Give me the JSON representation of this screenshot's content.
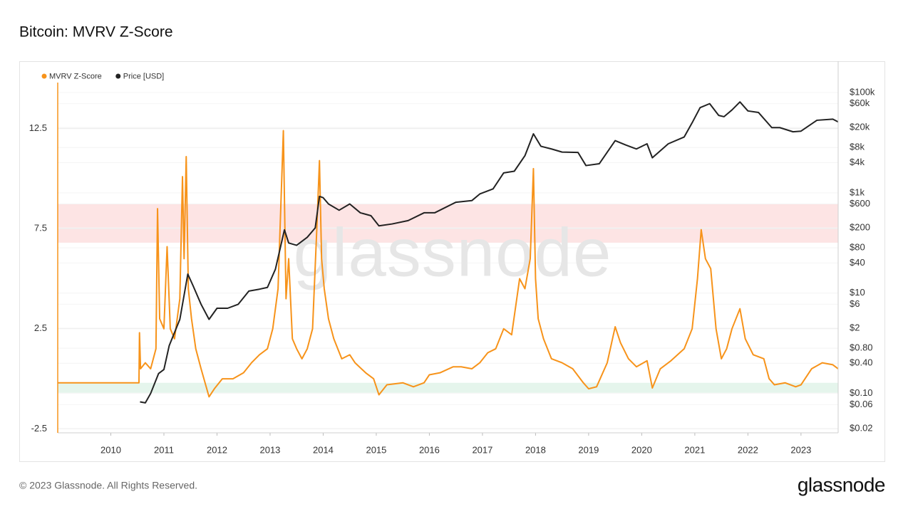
{
  "chart_data": {
    "type": "line",
    "title": "Bitcoin: MVRV Z-Score",
    "watermark": "glassnode",
    "footer": "© 2023 Glassnode. All Rights Reserved.",
    "logo": "glassnode",
    "xlim": [
      2009.0,
      2023.7
    ],
    "xticks": [
      2010,
      2011,
      2012,
      2013,
      2014,
      2015,
      2016,
      2017,
      2018,
      2019,
      2020,
      2021,
      2022,
      2023
    ],
    "ylim": [
      -2.7,
      14.8
    ],
    "yticks": [
      12.5,
      7.5,
      2.5,
      -2.5
    ],
    "y2lim": [
      0.0164,
      158000
    ],
    "y2scale": "log",
    "y2ticks": [
      {
        "value": 100000,
        "label": "$100k"
      },
      {
        "value": 60000,
        "label": "$60k"
      },
      {
        "value": 20000,
        "label": "$20k"
      },
      {
        "value": 8000,
        "label": "$8k"
      },
      {
        "value": 4000,
        "label": "$4k"
      },
      {
        "value": 1000,
        "label": "$1k"
      },
      {
        "value": 600,
        "label": "$600"
      },
      {
        "value": 200,
        "label": "$200"
      },
      {
        "value": 80,
        "label": "$80"
      },
      {
        "value": 40,
        "label": "$40"
      },
      {
        "value": 10,
        "label": "$10"
      },
      {
        "value": 6,
        "label": "$6"
      },
      {
        "value": 2,
        "label": "$2"
      },
      {
        "value": 0.8,
        "label": "$0.80"
      },
      {
        "value": 0.4,
        "label": "$0.40"
      },
      {
        "value": 0.1,
        "label": "$0.10"
      },
      {
        "value": 0.06,
        "label": "$0.06"
      },
      {
        "value": 0.02,
        "label": "$0.02"
      }
    ],
    "grid": true,
    "legend": "top-left",
    "bands": [
      {
        "range": [
          6.8,
          8.75
        ],
        "color": "#fde4e4"
      },
      {
        "range": [
          -0.7,
          -0.2
        ],
        "color": "#e5f5ec"
      }
    ],
    "series": [
      {
        "name": "MVRV Z-Score",
        "color": "#f7931a",
        "axis": "y",
        "x": [
          2009.0,
          2010.53,
          2010.54,
          2010.56,
          2010.65,
          2010.75,
          2010.85,
          2010.88,
          2010.92,
          2011.0,
          2011.06,
          2011.12,
          2011.2,
          2011.3,
          2011.35,
          2011.38,
          2011.42,
          2011.46,
          2011.52,
          2011.6,
          2011.7,
          2011.85,
          2011.95,
          2012.1,
          2012.3,
          2012.5,
          2012.65,
          2012.8,
          2012.95,
          2013.05,
          2013.15,
          2013.25,
          2013.3,
          2013.35,
          2013.42,
          2013.5,
          2013.6,
          2013.7,
          2013.8,
          2013.88,
          2013.93,
          2013.97,
          2014.02,
          2014.1,
          2014.2,
          2014.35,
          2014.5,
          2014.6,
          2014.8,
          2014.95,
          2015.05,
          2015.2,
          2015.5,
          2015.7,
          2015.9,
          2016.0,
          2016.2,
          2016.45,
          2016.6,
          2016.8,
          2016.95,
          2017.1,
          2017.25,
          2017.4,
          2017.55,
          2017.7,
          2017.8,
          2017.9,
          2017.96,
          2018.0,
          2018.05,
          2018.15,
          2018.3,
          2018.5,
          2018.7,
          2018.9,
          2019.0,
          2019.15,
          2019.35,
          2019.5,
          2019.6,
          2019.75,
          2019.9,
          2020.1,
          2020.2,
          2020.35,
          2020.55,
          2020.8,
          2020.95,
          2021.05,
          2021.12,
          2021.2,
          2021.3,
          2021.4,
          2021.5,
          2021.6,
          2021.7,
          2021.85,
          2021.95,
          2022.1,
          2022.3,
          2022.4,
          2022.5,
          2022.7,
          2022.9,
          2023.0,
          2023.2,
          2023.4,
          2023.6,
          2023.7
        ],
        "values": [
          -0.2,
          -0.2,
          2.3,
          0.5,
          0.8,
          0.5,
          1.5,
          8.5,
          3.0,
          2.5,
          6.6,
          2.5,
          2.0,
          4.0,
          10.1,
          6.0,
          11.1,
          4.5,
          3.0,
          1.5,
          0.5,
          -0.9,
          -0.5,
          0.0,
          0.0,
          0.3,
          0.8,
          1.2,
          1.5,
          2.5,
          4.5,
          12.4,
          4.0,
          6.0,
          2.0,
          1.5,
          1.0,
          1.5,
          2.5,
          7.5,
          10.9,
          6.0,
          4.5,
          3.0,
          2.0,
          1.0,
          1.2,
          0.8,
          0.3,
          0.0,
          -0.8,
          -0.3,
          -0.2,
          -0.4,
          -0.2,
          0.2,
          0.3,
          0.6,
          0.6,
          0.5,
          0.8,
          1.3,
          1.5,
          2.5,
          2.2,
          5.0,
          4.5,
          6.0,
          10.5,
          5.0,
          3.0,
          2.0,
          1.0,
          0.8,
          0.5,
          -0.2,
          -0.5,
          -0.4,
          0.8,
          2.6,
          1.8,
          1.0,
          0.6,
          0.9,
          -0.46,
          0.5,
          0.9,
          1.5,
          2.5,
          5.0,
          7.45,
          6.0,
          5.5,
          2.5,
          1.0,
          1.5,
          2.5,
          3.5,
          2.0,
          1.2,
          1.0,
          0.0,
          -0.3,
          -0.2,
          -0.4,
          -0.3,
          0.5,
          0.8,
          0.7,
          0.5
        ]
      },
      {
        "name": "Price [USD]",
        "color": "#222222",
        "axis": "y2",
        "x": [
          2010.55,
          2010.65,
          2010.75,
          2010.9,
          2011.0,
          2011.1,
          2011.3,
          2011.45,
          2011.55,
          2011.7,
          2011.85,
          2012.0,
          2012.2,
          2012.4,
          2012.6,
          2012.8,
          2012.95,
          2013.1,
          2013.27,
          2013.35,
          2013.5,
          2013.7,
          2013.85,
          2013.93,
          2014.0,
          2014.1,
          2014.3,
          2014.5,
          2014.7,
          2014.9,
          2015.05,
          2015.3,
          2015.6,
          2015.9,
          2016.1,
          2016.5,
          2016.8,
          2016.95,
          2017.2,
          2017.4,
          2017.6,
          2017.8,
          2017.96,
          2018.1,
          2018.3,
          2018.5,
          2018.8,
          2018.95,
          2019.2,
          2019.5,
          2019.7,
          2019.9,
          2020.1,
          2020.2,
          2020.5,
          2020.8,
          2020.95,
          2021.1,
          2021.28,
          2021.45,
          2021.55,
          2021.7,
          2021.85,
          2022.0,
          2022.2,
          2022.45,
          2022.6,
          2022.85,
          2023.0,
          2023.3,
          2023.6,
          2023.7
        ],
        "values": [
          0.068,
          0.065,
          0.1,
          0.25,
          0.3,
          0.9,
          3,
          24,
          14,
          6,
          3,
          5,
          5,
          6,
          11,
          12,
          13,
          30,
          183,
          100,
          90,
          130,
          200,
          850,
          800,
          600,
          450,
          600,
          400,
          350,
          220,
          240,
          280,
          400,
          400,
          650,
          700,
          950,
          1200,
          2500,
          2700,
          5500,
          15000,
          8500,
          7500,
          6500,
          6400,
          3500,
          3800,
          11000,
          9000,
          7500,
          9500,
          5000,
          9500,
          13000,
          25000,
          50000,
          60000,
          35000,
          33000,
          45000,
          65000,
          43000,
          40000,
          20000,
          20000,
          16500,
          17000,
          28000,
          29500,
          26000
        ]
      }
    ]
  }
}
